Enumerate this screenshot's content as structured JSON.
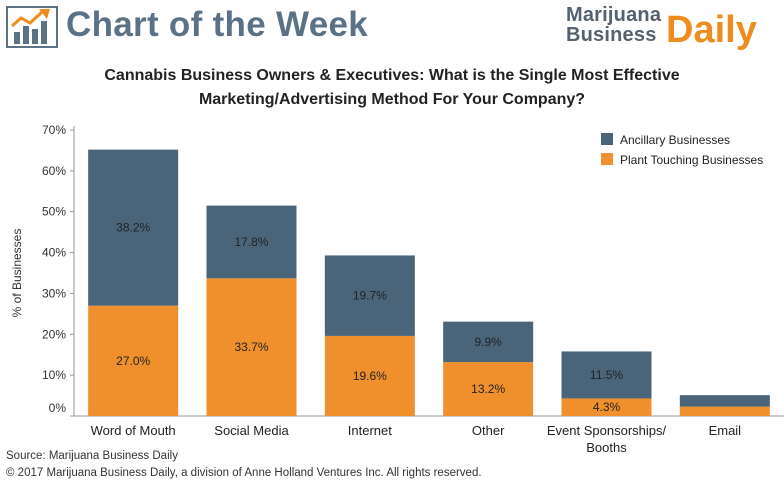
{
  "header": {
    "title": "Chart of the Week",
    "brand_line1": "Marijuana",
    "brand_line2": "Business",
    "brand_daily": "Daily"
  },
  "colors": {
    "ancillary": "#4a657a",
    "plant_touching": "#f0902d",
    "header_blue": "#5b7286",
    "brand_orange": "#ef8c1e"
  },
  "chart_data": {
    "type": "bar",
    "stacked": true,
    "title_line1": "Cannabis Business Owners & Executives: What is the Single Most Effective",
    "title_line2": "Marketing/Advertising Method For Your Company?",
    "ylabel": "% of Businesses",
    "xlabel": "",
    "ylim": [
      0,
      70
    ],
    "yticks": [
      "0%",
      "10%",
      "20%",
      "30%",
      "40%",
      "50%",
      "60%",
      "70%"
    ],
    "categories": [
      "Word of Mouth",
      "Social Media",
      "Internet",
      "Other",
      "Event Sponsorships/ Booths",
      "Email"
    ],
    "category_lines": [
      [
        "Word of Mouth"
      ],
      [
        "Social Media"
      ],
      [
        "Internet"
      ],
      [
        "Other"
      ],
      [
        "Event Sponsorships/",
        "Booths"
      ],
      [
        "Email"
      ]
    ],
    "series": [
      {
        "name": "Plant Touching Businesses",
        "values": [
          27.0,
          33.7,
          19.6,
          13.2,
          4.3,
          2.3
        ],
        "labels": [
          "27.0%",
          "33.7%",
          "19.6%",
          "13.2%",
          "4.3%",
          ""
        ]
      },
      {
        "name": "Ancillary Businesses",
        "values": [
          38.2,
          17.8,
          19.7,
          9.9,
          11.5,
          2.8
        ],
        "labels": [
          "38.2%",
          "17.8%",
          "19.7%",
          "9.9%",
          "11.5%",
          ""
        ]
      }
    ],
    "legend": [
      "Ancillary Businesses",
      "Plant Touching Businesses"
    ],
    "legend_position": "top-right",
    "grid": false
  },
  "footer": {
    "source": "Source: Marijuana Business Daily",
    "copyright": "© 2017 Marijuana Business Daily, a division of Anne Holland Ventures Inc. All rights reserved."
  }
}
